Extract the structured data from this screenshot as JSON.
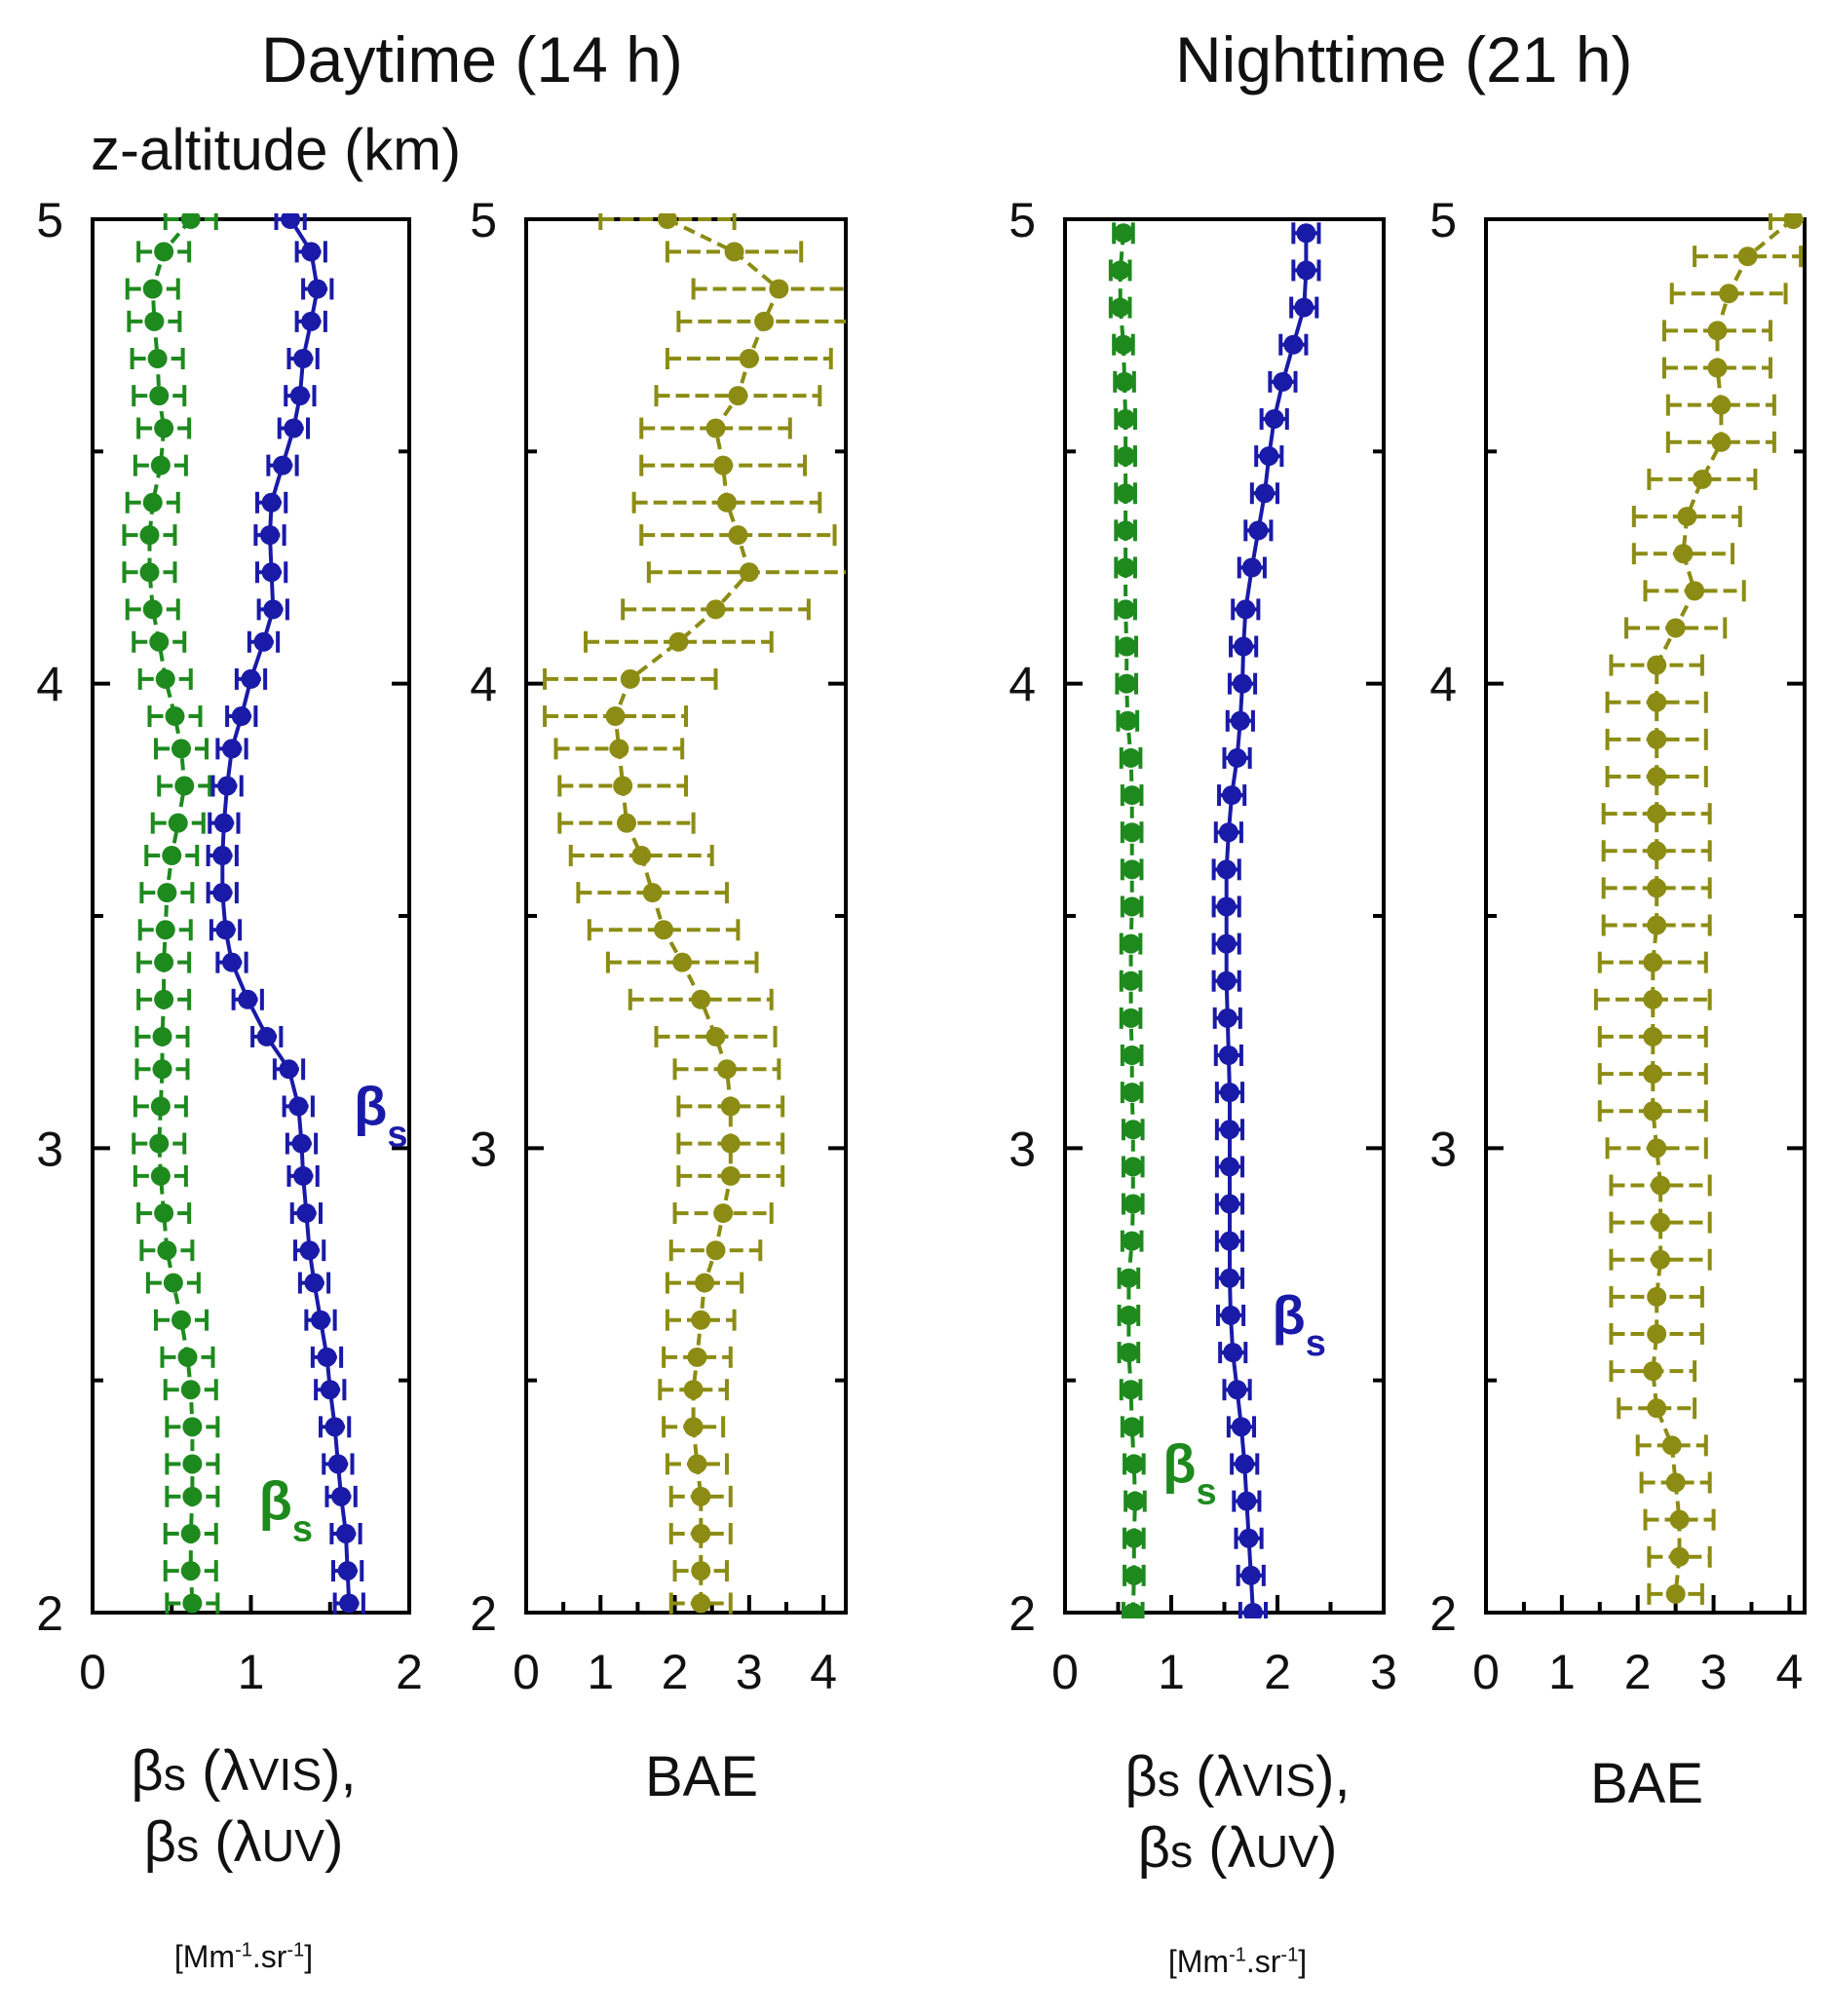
{
  "titles": {
    "day": "Daytime (14 h)",
    "night": "Nighttime (21 h)"
  },
  "y_axis_label": "z-altitude (km)",
  "x_labels": {
    "beta_part1": "β",
    "beta_sub": "s",
    "vis_part": " (λ",
    "vis_sub": "VIS",
    "vis_close": "),",
    "uv_part": " (λ",
    "uv_sub": "UV",
    "uv_close": ")",
    "units_main": "[Mm",
    "units_exp": "-1",
    "units_mid": ".sr",
    "units_exp2": "-1",
    "units_close": "]",
    "bae": "BAE"
  },
  "annotation_text": {
    "beta": "β",
    "sub": "s"
  },
  "colors": {
    "green": "#1e8a1e",
    "blue": "#1a1aa8",
    "olive": "#8c8c14",
    "axis": "#000000"
  },
  "chart_data": [
    {
      "id": "day-beta",
      "type": "line",
      "title": "Daytime (14 h)",
      "xlim": [
        0,
        2
      ],
      "ylim": [
        2,
        5
      ],
      "xticks": [
        0,
        1,
        2
      ],
      "yticks": [
        2,
        3,
        4,
        5
      ],
      "xlabel": "βs (λVIS), βs (λUV) [Mm-1.sr-1]",
      "ylabel": "z-altitude (km)",
      "annotations": [
        {
          "series": "beta_UV",
          "text": "βs",
          "x": 1.65,
          "y": 3.05
        },
        {
          "series": "beta_VIS",
          "text": "βs",
          "x": 1.05,
          "y": 2.2
        }
      ],
      "series": [
        {
          "name": "beta_VIS",
          "color": "green",
          "style": "dashed",
          "err": 0.16,
          "y": [
            5.0,
            4.93,
            4.85,
            4.78,
            4.7,
            4.62,
            4.55,
            4.47,
            4.39,
            4.32,
            4.24,
            4.16,
            4.09,
            4.01,
            3.93,
            3.86,
            3.78,
            3.7,
            3.63,
            3.55,
            3.47,
            3.4,
            3.32,
            3.24,
            3.17,
            3.09,
            3.01,
            2.94,
            2.86,
            2.78,
            2.71,
            2.63,
            2.55,
            2.48,
            2.4,
            2.32,
            2.25,
            2.17,
            2.09,
            2.02
          ],
          "x": [
            0.62,
            0.45,
            0.38,
            0.39,
            0.41,
            0.42,
            0.45,
            0.43,
            0.38,
            0.36,
            0.36,
            0.38,
            0.42,
            0.46,
            0.52,
            0.56,
            0.58,
            0.54,
            0.5,
            0.47,
            0.46,
            0.45,
            0.45,
            0.44,
            0.44,
            0.43,
            0.42,
            0.43,
            0.45,
            0.47,
            0.51,
            0.56,
            0.6,
            0.62,
            0.63,
            0.63,
            0.63,
            0.62,
            0.62,
            0.63
          ]
        },
        {
          "name": "beta_UV",
          "color": "blue",
          "style": "solid",
          "err": 0.09,
          "y": [
            5.0,
            4.93,
            4.85,
            4.78,
            4.7,
            4.62,
            4.55,
            4.47,
            4.39,
            4.32,
            4.24,
            4.16,
            4.09,
            4.01,
            3.93,
            3.86,
            3.78,
            3.7,
            3.63,
            3.55,
            3.47,
            3.4,
            3.32,
            3.24,
            3.17,
            3.09,
            3.01,
            2.94,
            2.86,
            2.78,
            2.71,
            2.63,
            2.55,
            2.48,
            2.4,
            2.32,
            2.25,
            2.17,
            2.09,
            2.02
          ],
          "x": [
            1.25,
            1.38,
            1.42,
            1.38,
            1.33,
            1.31,
            1.27,
            1.2,
            1.13,
            1.12,
            1.13,
            1.14,
            1.08,
            1.0,
            0.94,
            0.88,
            0.85,
            0.83,
            0.82,
            0.82,
            0.84,
            0.88,
            0.98,
            1.1,
            1.24,
            1.3,
            1.32,
            1.33,
            1.35,
            1.37,
            1.4,
            1.44,
            1.48,
            1.5,
            1.53,
            1.55,
            1.57,
            1.6,
            1.61,
            1.62
          ]
        }
      ]
    },
    {
      "id": "day-bae",
      "type": "line",
      "title": "Daytime (14 h)",
      "xlim": [
        0,
        4.3
      ],
      "ylim": [
        2,
        5
      ],
      "xticks": [
        0,
        1,
        2,
        3,
        4
      ],
      "yticks": [
        2,
        3,
        4,
        5
      ],
      "xlabel": "BAE",
      "ylabel": "",
      "series": [
        {
          "name": "BAE",
          "color": "olive",
          "style": "dashed",
          "err_list": [
            0.9,
            0.9,
            1.15,
            1.15,
            1.1,
            1.1,
            1.0,
            1.1,
            1.25,
            1.3,
            1.35,
            1.25,
            1.25,
            1.15,
            0.95,
            0.85,
            0.85,
            0.9,
            0.95,
            1.0,
            1.0,
            1.0,
            0.95,
            0.8,
            0.7,
            0.7,
            0.7,
            0.7,
            0.65,
            0.6,
            0.5,
            0.45,
            0.45,
            0.45,
            0.4,
            0.4,
            0.4,
            0.4,
            0.35,
            0.4
          ],
          "y": [
            5.0,
            4.93,
            4.85,
            4.78,
            4.7,
            4.62,
            4.55,
            4.47,
            4.39,
            4.32,
            4.24,
            4.16,
            4.09,
            4.01,
            3.93,
            3.86,
            3.78,
            3.7,
            3.63,
            3.55,
            3.47,
            3.4,
            3.32,
            3.24,
            3.17,
            3.09,
            3.01,
            2.94,
            2.86,
            2.78,
            2.71,
            2.63,
            2.55,
            2.48,
            2.4,
            2.32,
            2.25,
            2.17,
            2.09,
            2.02
          ],
          "x": [
            1.9,
            2.8,
            3.4,
            3.2,
            3.0,
            2.85,
            2.55,
            2.65,
            2.7,
            2.85,
            3.0,
            2.55,
            2.05,
            1.4,
            1.2,
            1.25,
            1.3,
            1.35,
            1.55,
            1.7,
            1.85,
            2.1,
            2.35,
            2.55,
            2.7,
            2.75,
            2.75,
            2.75,
            2.65,
            2.55,
            2.4,
            2.35,
            2.3,
            2.25,
            2.25,
            2.3,
            2.35,
            2.35,
            2.35,
            2.35
          ]
        }
      ]
    },
    {
      "id": "night-beta",
      "type": "line",
      "title": "Nighttime (21 h)",
      "xlim": [
        0,
        3
      ],
      "ylim": [
        2,
        5
      ],
      "xticks": [
        0,
        1,
        2,
        3
      ],
      "yticks": [
        2,
        3,
        4,
        5
      ],
      "xlabel": "βs (λVIS), βs (λUV) [Mm-1.sr-1]",
      "ylabel": "",
      "annotations": [
        {
          "series": "beta_UV",
          "text": "βs",
          "x": 1.95,
          "y": 2.6
        },
        {
          "series": "beta_VIS",
          "text": "βs",
          "x": 0.92,
          "y": 2.28
        }
      ],
      "series": [
        {
          "name": "beta_VIS",
          "color": "green",
          "style": "dashed",
          "err": 0.09,
          "y": [
            4.97,
            4.89,
            4.81,
            4.73,
            4.65,
            4.57,
            4.49,
            4.41,
            4.33,
            4.25,
            4.16,
            4.08,
            4.0,
            3.92,
            3.84,
            3.76,
            3.68,
            3.6,
            3.52,
            3.44,
            3.36,
            3.28,
            3.2,
            3.12,
            3.04,
            2.96,
            2.88,
            2.8,
            2.72,
            2.64,
            2.56,
            2.48,
            2.4,
            2.32,
            2.24,
            2.16,
            2.08,
            2.0
          ],
          "x": [
            0.55,
            0.52,
            0.52,
            0.55,
            0.56,
            0.57,
            0.57,
            0.57,
            0.57,
            0.57,
            0.57,
            0.58,
            0.58,
            0.59,
            0.62,
            0.63,
            0.63,
            0.63,
            0.63,
            0.62,
            0.62,
            0.62,
            0.63,
            0.63,
            0.64,
            0.64,
            0.64,
            0.63,
            0.6,
            0.6,
            0.6,
            0.62,
            0.63,
            0.65,
            0.66,
            0.65,
            0.65,
            0.64
          ]
        },
        {
          "name": "beta_UV",
          "color": "blue",
          "style": "solid",
          "err": 0.12,
          "y": [
            4.97,
            4.89,
            4.81,
            4.73,
            4.65,
            4.57,
            4.49,
            4.41,
            4.33,
            4.25,
            4.16,
            4.08,
            4.0,
            3.92,
            3.84,
            3.76,
            3.68,
            3.6,
            3.52,
            3.44,
            3.36,
            3.28,
            3.2,
            3.12,
            3.04,
            2.96,
            2.88,
            2.8,
            2.72,
            2.64,
            2.56,
            2.48,
            2.4,
            2.32,
            2.24,
            2.16,
            2.08,
            2.0
          ],
          "x": [
            2.27,
            2.27,
            2.25,
            2.15,
            2.05,
            1.97,
            1.92,
            1.88,
            1.82,
            1.76,
            1.7,
            1.68,
            1.67,
            1.65,
            1.62,
            1.57,
            1.54,
            1.52,
            1.52,
            1.52,
            1.52,
            1.53,
            1.54,
            1.55,
            1.55,
            1.55,
            1.55,
            1.55,
            1.55,
            1.56,
            1.58,
            1.62,
            1.66,
            1.69,
            1.71,
            1.73,
            1.75,
            1.77
          ]
        }
      ]
    },
    {
      "id": "night-bae",
      "type": "line",
      "title": "Nighttime (21 h)",
      "xlim": [
        0,
        4.2
      ],
      "ylim": [
        2,
        5
      ],
      "xticks": [
        0,
        1,
        2,
        3,
        4
      ],
      "yticks": [
        2,
        3,
        4,
        5
      ],
      "xlabel": "BAE",
      "ylabel": "",
      "series": [
        {
          "name": "BAE",
          "color": "olive",
          "style": "dashed",
          "err_list": [
            0.3,
            0.7,
            0.75,
            0.7,
            0.7,
            0.7,
            0.7,
            0.7,
            0.7,
            0.65,
            0.65,
            0.65,
            0.6,
            0.65,
            0.65,
            0.65,
            0.7,
            0.7,
            0.7,
            0.7,
            0.7,
            0.75,
            0.7,
            0.7,
            0.7,
            0.65,
            0.65,
            0.65,
            0.65,
            0.6,
            0.6,
            0.55,
            0.5,
            0.45,
            0.45,
            0.45,
            0.4,
            0.35
          ],
          "y": [
            5.0,
            4.92,
            4.84,
            4.76,
            4.68,
            4.6,
            4.52,
            4.44,
            4.36,
            4.28,
            4.2,
            4.12,
            4.04,
            3.96,
            3.88,
            3.8,
            3.72,
            3.64,
            3.56,
            3.48,
            3.4,
            3.32,
            3.24,
            3.16,
            3.08,
            3.0,
            2.92,
            2.84,
            2.76,
            2.68,
            2.6,
            2.52,
            2.44,
            2.36,
            2.28,
            2.2,
            2.12,
            2.04
          ],
          "x": [
            4.05,
            3.45,
            3.2,
            3.05,
            3.05,
            3.1,
            3.1,
            2.85,
            2.65,
            2.6,
            2.75,
            2.5,
            2.25,
            2.25,
            2.25,
            2.25,
            2.25,
            2.25,
            2.25,
            2.25,
            2.2,
            2.2,
            2.2,
            2.2,
            2.2,
            2.25,
            2.3,
            2.3,
            2.3,
            2.25,
            2.25,
            2.2,
            2.25,
            2.45,
            2.5,
            2.55,
            2.55,
            2.5
          ]
        }
      ]
    }
  ]
}
